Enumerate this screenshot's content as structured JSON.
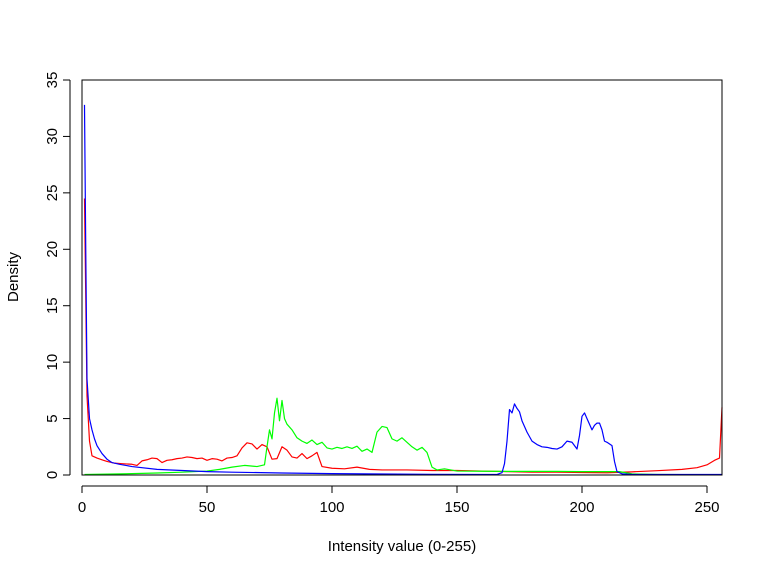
{
  "chart_data": {
    "type": "line",
    "title": "",
    "xlabel": "Intensity value (0-255)",
    "ylabel": "Density",
    "xlim": [
      0,
      256
    ],
    "ylim": [
      0,
      35
    ],
    "x_ticks": [
      0,
      50,
      100,
      150,
      200,
      250
    ],
    "y_ticks": [
      0,
      5,
      10,
      15,
      20,
      25,
      30,
      35
    ],
    "grid": false,
    "legend": "none",
    "series": [
      {
        "color": "#ff0000",
        "points": [
          [
            1,
            24.5
          ],
          [
            2,
            7.0
          ],
          [
            3,
            3.0
          ],
          [
            4,
            1.7
          ],
          [
            6,
            1.5
          ],
          [
            8,
            1.35
          ],
          [
            10,
            1.2
          ],
          [
            13,
            1.05
          ],
          [
            16,
            1.0
          ],
          [
            20,
            0.95
          ],
          [
            22,
            0.85
          ],
          [
            24,
            1.25
          ],
          [
            26,
            1.35
          ],
          [
            28,
            1.5
          ],
          [
            30,
            1.45
          ],
          [
            32,
            1.1
          ],
          [
            34,
            1.3
          ],
          [
            36,
            1.35
          ],
          [
            38,
            1.45
          ],
          [
            40,
            1.5
          ],
          [
            42,
            1.6
          ],
          [
            44,
            1.55
          ],
          [
            46,
            1.45
          ],
          [
            48,
            1.5
          ],
          [
            50,
            1.3
          ],
          [
            52,
            1.45
          ],
          [
            54,
            1.4
          ],
          [
            56,
            1.25
          ],
          [
            58,
            1.5
          ],
          [
            60,
            1.55
          ],
          [
            62,
            1.7
          ],
          [
            64,
            2.4
          ],
          [
            66,
            2.85
          ],
          [
            68,
            2.75
          ],
          [
            70,
            2.3
          ],
          [
            72,
            2.7
          ],
          [
            74,
            2.5
          ],
          [
            76,
            1.4
          ],
          [
            78,
            1.45
          ],
          [
            80,
            2.5
          ],
          [
            82,
            2.2
          ],
          [
            84,
            1.6
          ],
          [
            86,
            1.5
          ],
          [
            88,
            1.9
          ],
          [
            90,
            1.45
          ],
          [
            92,
            1.7
          ],
          [
            94,
            2.0
          ],
          [
            96,
            0.75
          ],
          [
            100,
            0.6
          ],
          [
            105,
            0.55
          ],
          [
            110,
            0.7
          ],
          [
            115,
            0.5
          ],
          [
            120,
            0.45
          ],
          [
            130,
            0.45
          ],
          [
            140,
            0.4
          ],
          [
            150,
            0.4
          ],
          [
            160,
            0.35
          ],
          [
            170,
            0.3
          ],
          [
            180,
            0.25
          ],
          [
            190,
            0.25
          ],
          [
            200,
            0.22
          ],
          [
            210,
            0.2
          ],
          [
            220,
            0.28
          ],
          [
            230,
            0.38
          ],
          [
            240,
            0.5
          ],
          [
            246,
            0.65
          ],
          [
            250,
            0.9
          ],
          [
            253,
            1.3
          ],
          [
            255,
            1.5
          ],
          [
            256,
            6.0
          ]
        ]
      },
      {
        "color": "#00ff00",
        "points": [
          [
            1,
            0.05
          ],
          [
            10,
            0.08
          ],
          [
            20,
            0.12
          ],
          [
            30,
            0.18
          ],
          [
            40,
            0.25
          ],
          [
            50,
            0.35
          ],
          [
            55,
            0.5
          ],
          [
            60,
            0.7
          ],
          [
            65,
            0.85
          ],
          [
            70,
            0.75
          ],
          [
            73,
            0.9
          ],
          [
            74,
            2.5
          ],
          [
            75,
            4.0
          ],
          [
            76,
            3.2
          ],
          [
            77,
            5.5
          ],
          [
            78,
            6.8
          ],
          [
            79,
            4.8
          ],
          [
            80,
            6.6
          ],
          [
            81,
            5.0
          ],
          [
            82,
            4.5
          ],
          [
            84,
            4.0
          ],
          [
            86,
            3.3
          ],
          [
            88,
            3.0
          ],
          [
            90,
            2.8
          ],
          [
            92,
            3.1
          ],
          [
            94,
            2.7
          ],
          [
            96,
            2.9
          ],
          [
            98,
            2.4
          ],
          [
            100,
            2.3
          ],
          [
            102,
            2.45
          ],
          [
            104,
            2.35
          ],
          [
            106,
            2.5
          ],
          [
            108,
            2.35
          ],
          [
            110,
            2.55
          ],
          [
            112,
            2.1
          ],
          [
            114,
            2.3
          ],
          [
            116,
            2.0
          ],
          [
            118,
            3.8
          ],
          [
            120,
            4.3
          ],
          [
            122,
            4.2
          ],
          [
            124,
            3.2
          ],
          [
            126,
            3.0
          ],
          [
            128,
            3.3
          ],
          [
            130,
            2.9
          ],
          [
            132,
            2.5
          ],
          [
            134,
            2.2
          ],
          [
            136,
            2.45
          ],
          [
            138,
            2.0
          ],
          [
            140,
            0.7
          ],
          [
            142,
            0.45
          ],
          [
            145,
            0.55
          ],
          [
            150,
            0.35
          ],
          [
            160,
            0.33
          ],
          [
            170,
            0.32
          ],
          [
            180,
            0.32
          ],
          [
            190,
            0.32
          ],
          [
            200,
            0.3
          ],
          [
            210,
            0.3
          ],
          [
            215,
            0.3
          ],
          [
            220,
            0.1
          ],
          [
            230,
            0.05
          ],
          [
            240,
            0.04
          ],
          [
            256,
            0.03
          ]
        ]
      },
      {
        "color": "#0000ff",
        "points": [
          [
            1,
            32.8
          ],
          [
            1.5,
            20.0
          ],
          [
            2,
            8.5
          ],
          [
            3,
            5.0
          ],
          [
            4,
            4.0
          ],
          [
            5,
            3.2
          ],
          [
            6,
            2.6
          ],
          [
            8,
            1.9
          ],
          [
            10,
            1.4
          ],
          [
            12,
            1.1
          ],
          [
            15,
            0.95
          ],
          [
            20,
            0.75
          ],
          [
            30,
            0.5
          ],
          [
            40,
            0.4
          ],
          [
            50,
            0.3
          ],
          [
            60,
            0.25
          ],
          [
            80,
            0.18
          ],
          [
            100,
            0.12
          ],
          [
            120,
            0.09
          ],
          [
            140,
            0.06
          ],
          [
            160,
            0.05
          ],
          [
            166,
            0.05
          ],
          [
            168,
            0.2
          ],
          [
            169,
            1.0
          ],
          [
            170,
            3.0
          ],
          [
            171,
            5.8
          ],
          [
            172,
            5.5
          ],
          [
            173,
            6.3
          ],
          [
            174,
            5.9
          ],
          [
            175,
            5.6
          ],
          [
            176,
            4.8
          ],
          [
            178,
            3.8
          ],
          [
            180,
            3.0
          ],
          [
            182,
            2.7
          ],
          [
            184,
            2.5
          ],
          [
            186,
            2.45
          ],
          [
            188,
            2.35
          ],
          [
            190,
            2.3
          ],
          [
            192,
            2.5
          ],
          [
            194,
            3.0
          ],
          [
            196,
            2.9
          ],
          [
            198,
            2.3
          ],
          [
            199,
            3.5
          ],
          [
            200,
            5.2
          ],
          [
            201,
            5.5
          ],
          [
            202,
            5.0
          ],
          [
            203,
            4.5
          ],
          [
            204,
            4.0
          ],
          [
            205,
            4.4
          ],
          [
            206,
            4.6
          ],
          [
            207,
            4.6
          ],
          [
            208,
            4.0
          ],
          [
            209,
            3.0
          ],
          [
            210,
            2.9
          ],
          [
            212,
            2.6
          ],
          [
            213,
            1.2
          ],
          [
            214,
            0.3
          ],
          [
            216,
            0.1
          ],
          [
            220,
            0.05
          ],
          [
            240,
            0.05
          ],
          [
            256,
            0.05
          ]
        ]
      }
    ]
  }
}
